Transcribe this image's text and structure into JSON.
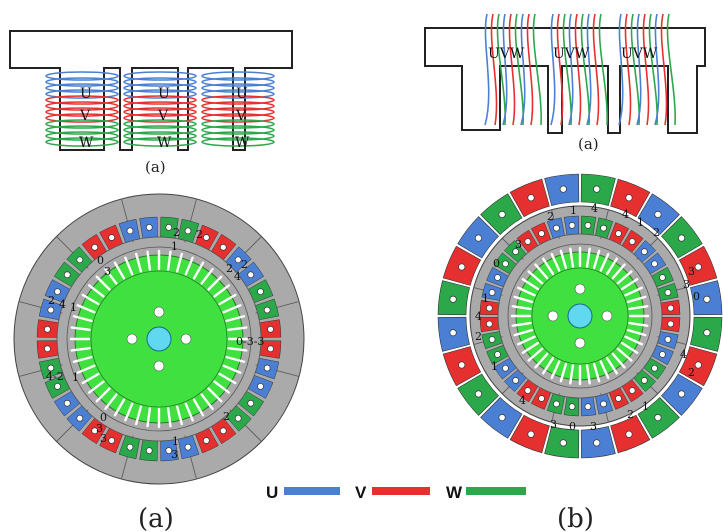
{
  "colors": {
    "U": "#4a7fd4",
    "V": "#e63030",
    "W": "#2aa84a",
    "core": "#aaaaaa",
    "rotor": "#3fe03f",
    "shaft": "#5fd8f0"
  },
  "top_left": {
    "phases": [
      "U",
      "V",
      "W"
    ],
    "caption": "(a)"
  },
  "top_right": {
    "tooth_label": "UVW",
    "caption": "(a)"
  },
  "left_motor": {
    "coil_numbers": [
      "2",
      "1",
      "2",
      "2",
      "2",
      "4",
      "0",
      "3",
      "2",
      "4",
      "1",
      "0-3-3",
      "4-2",
      "1",
      "0",
      "3",
      "3",
      "2",
      "1",
      "3"
    ],
    "bottom_caption": "(a)"
  },
  "right_motor": {
    "coil_numbers": [
      "2",
      "1",
      "4",
      "4",
      "1",
      "2",
      "3",
      "0",
      "3",
      "3",
      "0",
      "1",
      "4",
      "2",
      "1",
      "2",
      "4",
      "4",
      "2",
      "1",
      "3",
      "0",
      "3"
    ],
    "bottom_caption": "(b)"
  },
  "legend": {
    "items": [
      {
        "label": "U",
        "color": "#4a7fd4"
      },
      {
        "label": "V",
        "color": "#e63030"
      },
      {
        "label": "W",
        "color": "#2aa84a"
      }
    ]
  }
}
